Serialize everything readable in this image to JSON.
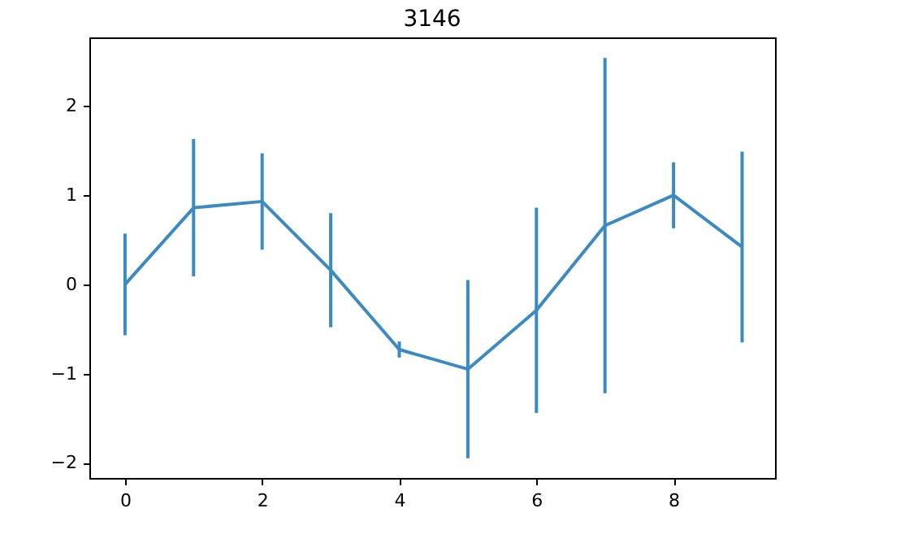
{
  "chart_data": {
    "type": "line",
    "title": "3146",
    "x": [
      0,
      1,
      2,
      3,
      4,
      5,
      6,
      7,
      8,
      9
    ],
    "series": [
      {
        "color": "#3b8bc2",
        "values": [
          0.0,
          0.86,
          0.93,
          0.16,
          -0.73,
          -0.95,
          -0.29,
          0.66,
          1.0,
          0.42
        ],
        "errors": [
          0.57,
          0.77,
          0.54,
          0.64,
          0.09,
          1.0,
          1.15,
          1.88,
          0.37,
          1.07
        ]
      }
    ],
    "xlim": [
      -0.52,
      9.48
    ],
    "ylim": [
      -2.17,
      2.77
    ],
    "xticks": [
      0,
      2,
      4,
      6,
      8
    ],
    "yticks": [
      -2,
      -1,
      0,
      1,
      2
    ],
    "grid": false,
    "marker": "none",
    "line_style": "solid"
  }
}
